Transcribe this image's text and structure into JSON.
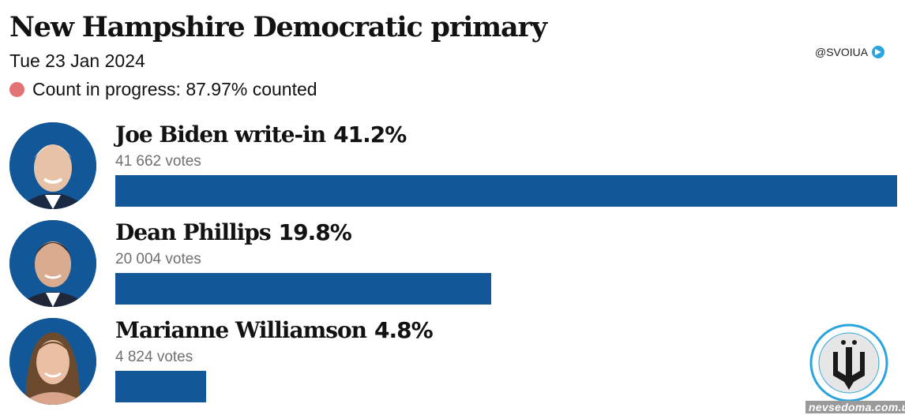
{
  "header": {
    "title": "New Hampshire Democratic primary",
    "date": "Tue 23 Jan 2024",
    "status": "Count in progress: 87.97% counted",
    "status_color": "#e27274"
  },
  "handle": "@SVOIUA",
  "watermark": "nevsedoma.com.ua",
  "bar_color": "#125797",
  "chart_data": {
    "type": "bar",
    "orientation": "horizontal",
    "title": "New Hampshire Democratic primary",
    "subtitle": "Tue 23 Jan 2024",
    "xlim": [
      0,
      41.2
    ],
    "categories": [
      "Joe Biden write-in",
      "Dean Phillips",
      "Marianne Williamson"
    ],
    "series": [
      {
        "values": [
          41.2,
          19.8,
          4.8
        ]
      }
    ],
    "candidates": [
      {
        "name": "Joe Biden write-in",
        "pct": 41.2,
        "pct_label": "41.2%",
        "votes": "41 662 votes"
      },
      {
        "name": "Dean Phillips",
        "pct": 19.8,
        "pct_label": "19.8%",
        "votes": "20 004 votes"
      },
      {
        "name": "Marianne Williamson",
        "pct": 4.8,
        "pct_label": "4.8%",
        "votes": "4 824 votes"
      }
    ]
  }
}
